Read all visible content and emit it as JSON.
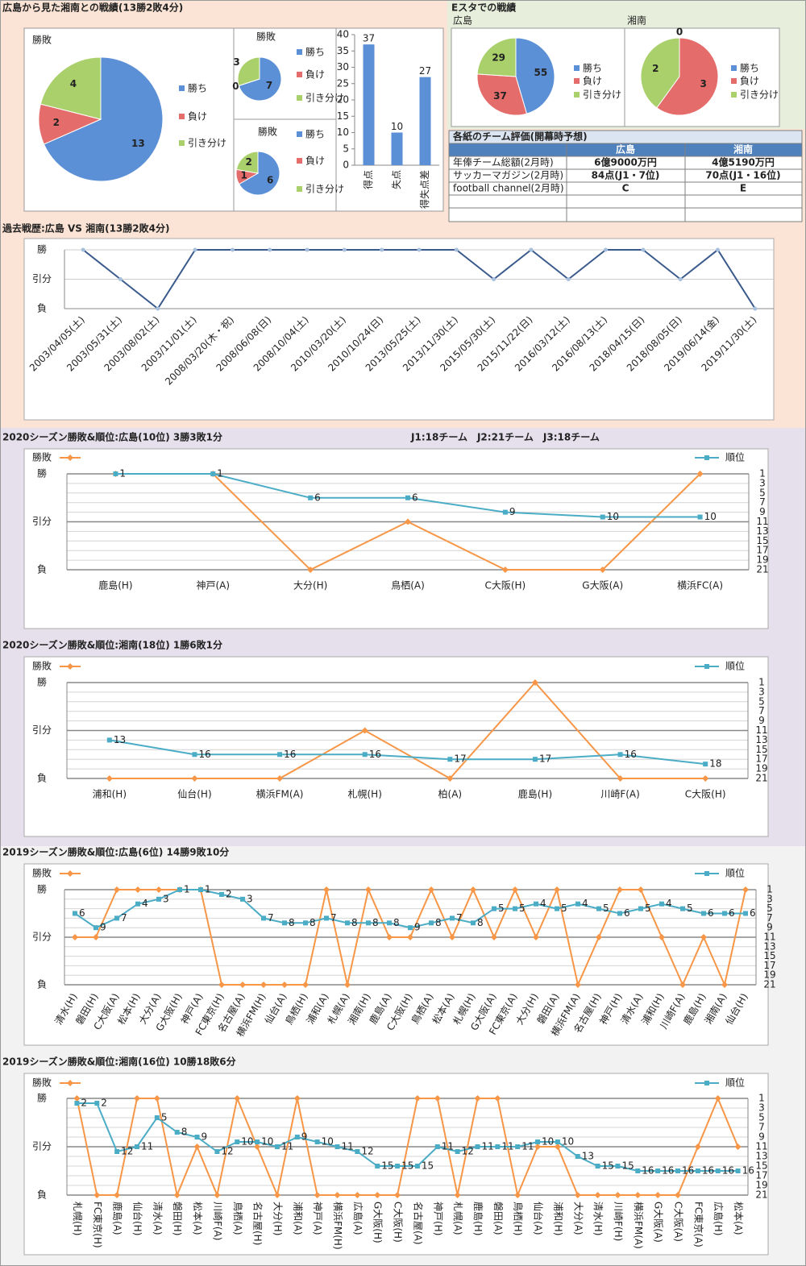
{
  "summary": {
    "title": "広島から見た湘南との戦績(13勝2敗4分)"
  },
  "estadium": {
    "title": "Eスタでの戦績"
  },
  "table": {
    "title": "各紙のチーム評価(開幕時予想)",
    "header": [
      "広島",
      "湘南"
    ],
    "rows": [
      [
        "年俸チーム総額(2月時)",
        "6億9000万円",
        "4億5190万円"
      ],
      [
        "サッカーマガジン(2月時)",
        "84点(J1・7位)",
        "70点(J1・16位)"
      ],
      [
        "football channel(2月時)",
        "C",
        "E"
      ]
    ]
  },
  "chart_data": [
    {
      "type": "pie",
      "title": "勝敗",
      "categories": [
        "勝ち",
        "負け",
        "引き分け"
      ],
      "values": [
        13,
        2,
        4
      ],
      "colors": [
        "#5b8fd6",
        "#e46c6a",
        "#a9d06a"
      ]
    },
    {
      "type": "pie",
      "title": "勝敗",
      "categories": [
        "勝ち",
        "負け",
        "引き分け"
      ],
      "values": [
        7,
        0,
        3
      ],
      "colors": [
        "#5b8fd6",
        "#e46c6a",
        "#a9d06a"
      ]
    },
    {
      "type": "pie",
      "title": "勝敗",
      "categories": [
        "勝ち",
        "負け",
        "引き分け"
      ],
      "values": [
        6,
        1,
        2
      ],
      "colors": [
        "#5b8fd6",
        "#e46c6a",
        "#a9d06a"
      ]
    },
    {
      "type": "bar",
      "categories": [
        "得点",
        "失点",
        "得失点差"
      ],
      "values": [
        37,
        10,
        27
      ],
      "color": "#5b8fd6",
      "ylim": [
        0,
        40
      ],
      "yticks": [
        0,
        5,
        10,
        15,
        20,
        25,
        30,
        35,
        40
      ]
    },
    {
      "type": "pie",
      "title": "広島",
      "categories": [
        "勝ち",
        "負け",
        "引き分け"
      ],
      "values": [
        55,
        37,
        29
      ],
      "colors": [
        "#5b8fd6",
        "#e46c6a",
        "#a9d06a"
      ]
    },
    {
      "type": "pie",
      "title": "湘南",
      "categories": [
        "勝ち",
        "負け",
        "引き分け"
      ],
      "values": [
        0,
        3,
        2
      ],
      "colors": [
        "#5b8fd6",
        "#e46c6a",
        "#a9d06a"
      ]
    },
    {
      "type": "line",
      "title": "過去戦歴:広島 VS 湘南(13勝2敗4分)",
      "categories": [
        "2003/04/05(土)",
        "2003/05/31(土)",
        "2003/08/02(土)",
        "2003/11/01(土)",
        "2008/03/20(木・祝)",
        "2008/06/08(日)",
        "2008/10/04(土)",
        "2010/03/20(土)",
        "2010/10/24(日)",
        "2013/05/25(土)",
        "2013/11/30(土)",
        "2015/05/30(土)",
        "2015/11/22(日)",
        "2016/03/12(土)",
        "2016/08/13(土)",
        "2018/04/15(日)",
        "2018/08/05(日)",
        "2019/06/14(金)",
        "2019/11/30(土)"
      ],
      "values": [
        2,
        1,
        0,
        2,
        2,
        2,
        2,
        2,
        2,
        2,
        2,
        1,
        2,
        1,
        2,
        2,
        1,
        2,
        0
      ],
      "color": "#3b5a8c",
      "ylim": [
        0,
        2
      ],
      "yticks": [
        {
          "value": 2,
          "label": "勝"
        },
        {
          "value": 1,
          "label": "引分"
        },
        {
          "value": 0,
          "label": "負"
        }
      ]
    },
    {
      "type": "line",
      "title": "2020シーズン勝敗&順位:広島(10位) 3勝3敗1分",
      "subtitle": "J1:18チーム　J2:21チーム　J3:18チーム",
      "categories": [
        "鹿島(H)",
        "神戸(A)",
        "大分(H)",
        "鳥栖(A)",
        "C大阪(H)",
        "G大阪(A)",
        "横浜FC(A)"
      ],
      "series": [
        {
          "name": "勝敗",
          "color": "#f79646",
          "values": [
            2,
            2,
            0,
            1,
            0,
            0,
            2
          ]
        },
        {
          "name": "順位",
          "color": "#4bacc6",
          "axis": "y2",
          "values": [
            1,
            1,
            6,
            6,
            9,
            10,
            10
          ]
        }
      ],
      "ylim": [
        0,
        2
      ],
      "yticks": [
        {
          "value": 2,
          "label": "勝"
        },
        {
          "value": 1,
          "label": "引分"
        },
        {
          "value": 0,
          "label": "負"
        }
      ],
      "y2lim": [
        21,
        1
      ],
      "y2ticks": [
        1,
        3,
        5,
        7,
        9,
        11,
        13,
        15,
        17,
        19,
        21
      ]
    },
    {
      "type": "line",
      "title": "2020シーズン勝敗&順位:湘南(18位) 1勝6敗1分",
      "categories": [
        "浦和(H)",
        "仙台(H)",
        "横浜FM(A)",
        "札幌(H)",
        "柏(A)",
        "鹿島(H)",
        "川崎F(A)",
        "C大阪(H)"
      ],
      "series": [
        {
          "name": "勝敗",
          "color": "#f79646",
          "values": [
            0,
            0,
            0,
            1,
            0,
            2,
            0,
            0
          ]
        },
        {
          "name": "順位",
          "color": "#4bacc6",
          "axis": "y2",
          "values": [
            13,
            16,
            16,
            16,
            17,
            17,
            16,
            18
          ]
        }
      ],
      "ylim": [
        0,
        2
      ],
      "yticks": [
        {
          "value": 2,
          "label": "勝"
        },
        {
          "value": 1,
          "label": "引分"
        },
        {
          "value": 0,
          "label": "負"
        }
      ],
      "y2lim": [
        21,
        1
      ],
      "y2ticks": [
        1,
        3,
        5,
        7,
        9,
        11,
        13,
        15,
        17,
        19,
        21
      ]
    },
    {
      "type": "line",
      "title": "2019シーズン勝敗&順位:広島(6位) 14勝9敗10分",
      "categories": [
        "清水(H)",
        "磐田(H)",
        "C大阪(A)",
        "松本(H)",
        "大分(A)",
        "G大阪(H)",
        "神戸(A)",
        "FC東京(H)",
        "名古屋(A)",
        "横浜FM(H)",
        "仙台(A)",
        "鳥栖(H)",
        "浦和(A)",
        "札幌(A)",
        "湘南(H)",
        "鹿島(A)",
        "C大阪(H)",
        "鳥栖(A)",
        "松本(A)",
        "札幌(H)",
        "G大阪(A)",
        "FC東京(A)",
        "大分(H)",
        "磐田(A)",
        "横浜FM(A)",
        "名古屋(H)",
        "神戸(H)",
        "清水(A)",
        "浦和(H)",
        "川崎F(A)",
        "鹿島(H)",
        "湘南(A)",
        "仙台(H)"
      ],
      "series": [
        {
          "name": "勝敗",
          "color": "#f79646",
          "values": [
            1,
            1,
            2,
            2,
            2,
            2,
            2,
            0,
            0,
            0,
            0,
            0,
            2,
            0,
            2,
            1,
            1,
            2,
            1,
            2,
            1,
            2,
            1,
            2,
            0,
            1,
            2,
            2,
            1,
            0,
            1,
            0,
            2
          ]
        },
        {
          "name": "順位",
          "color": "#4bacc6",
          "axis": "y2",
          "values": [
            6,
            9,
            7,
            4,
            3,
            1,
            1,
            2,
            3,
            7,
            8,
            8,
            7,
            8,
            8,
            8,
            9,
            8,
            7,
            8,
            5,
            5,
            4,
            5,
            4,
            5,
            6,
            5,
            4,
            5,
            6,
            6,
            6
          ]
        }
      ],
      "ylim": [
        0,
        2
      ],
      "yticks": [
        {
          "value": 2,
          "label": "勝"
        },
        {
          "value": 1,
          "label": "引分"
        },
        {
          "value": 0,
          "label": "負"
        }
      ],
      "y2lim": [
        21,
        1
      ],
      "y2ticks": [
        1,
        3,
        5,
        7,
        9,
        11,
        13,
        15,
        17,
        19,
        21
      ]
    },
    {
      "type": "line",
      "title": "2019シーズン勝敗&順位:湘南(16位) 10勝18敗6分",
      "categories": [
        "札幌(H)",
        "FC東京(H)",
        "鹿島(A)",
        "仙台(H)",
        "清水(A)",
        "磐田(H)",
        "松本(A)",
        "川崎F(A)",
        "鳥栖(A)",
        "名古屋(H)",
        "大分(H)",
        "浦和(A)",
        "神戸(A)",
        "横浜FM(H)",
        "広島(A)",
        "G大阪(H)",
        "C大阪(H)",
        "名古屋(A)",
        "神戸(H)",
        "札幌(A)",
        "鹿島(H)",
        "磐田(A)",
        "鳥栖(H)",
        "仙台(A)",
        "浦和(H)",
        "大分(A)",
        "清水(H)",
        "川崎F(H)",
        "横浜FM(A)",
        "G大阪(A)",
        "C大阪(A)",
        "FC東京(A)",
        "広島(H)",
        "松本(A)"
      ],
      "series": [
        {
          "name": "勝敗",
          "color": "#f79646",
          "values": [
            2,
            0,
            0,
            2,
            2,
            0,
            1,
            0,
            2,
            1,
            0,
            2,
            0,
            0,
            0,
            0,
            0,
            2,
            2,
            0,
            2,
            2,
            0,
            1,
            1,
            0,
            0,
            0,
            0,
            0,
            0,
            1,
            2,
            1
          ]
        },
        {
          "name": "順位",
          "color": "#4bacc6",
          "axis": "y2",
          "values": [
            2,
            2,
            12,
            11,
            5,
            8,
            9,
            12,
            10,
            10,
            11,
            9,
            10,
            11,
            12,
            15,
            15,
            15,
            11,
            12,
            11,
            11,
            11,
            10,
            10,
            13,
            15,
            15,
            16,
            16,
            16,
            16,
            16,
            16
          ]
        }
      ],
      "ylim": [
        0,
        2
      ],
      "yticks": [
        {
          "value": 2,
          "label": "勝"
        },
        {
          "value": 1,
          "label": "引分"
        },
        {
          "value": 0,
          "label": "負"
        }
      ],
      "y2lim": [
        21,
        1
      ],
      "y2ticks": [
        1,
        3,
        5,
        7,
        9,
        11,
        13,
        15,
        17,
        19,
        21
      ]
    }
  ]
}
